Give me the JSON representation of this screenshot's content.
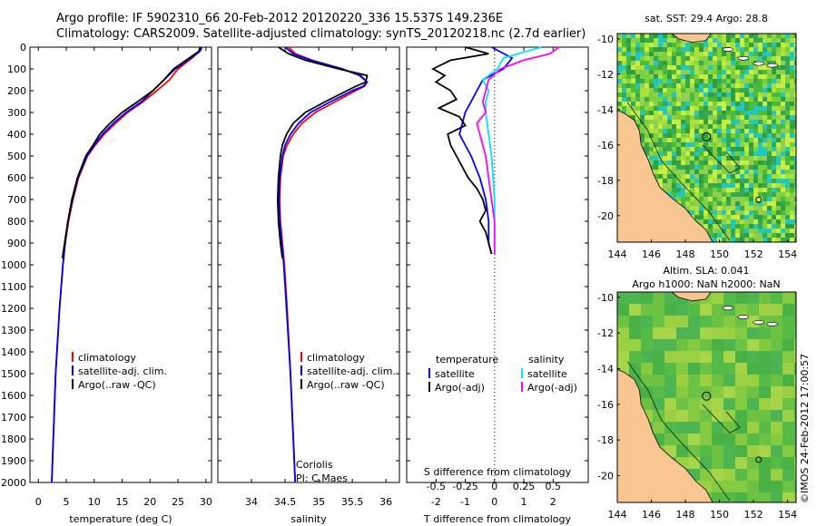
{
  "titles": {
    "line1": "Argo profile: IF 5902310_66 20-Feb-2012 20120220_336 15.537S 149.236E",
    "line2": "Climatology: CARS2009. Satellite-adjusted climatology: synTS_20120218.nc (2.7d earlier)"
  },
  "credit": "©IMOS 24-Feb-2012 17:00:57",
  "colors": {
    "climatology": "#ff0000",
    "satellite": "#0000ff",
    "argo": "#000000",
    "sal_satellite": "#00e5ff",
    "sal_argo": "#ff00ff",
    "land": "#f9c591"
  },
  "chart_data": [
    {
      "type": "line",
      "xlabel": "temperature (deg C)",
      "ylabel": "",
      "xlim": [
        -1.5,
        31
      ],
      "ylim": [
        2000,
        0
      ],
      "xticks": [
        "0",
        "5",
        "10",
        "15",
        "20",
        "25",
        "30"
      ],
      "yticks": [
        "0",
        "100",
        "200",
        "300",
        "400",
        "500",
        "600",
        "700",
        "800",
        "900",
        "1000",
        "1100",
        "1200",
        "1300",
        "1400",
        "1500",
        "1600",
        "1700",
        "1800",
        "1900",
        "2000"
      ],
      "legend": [
        "climatology",
        "satellite-adj. clim.",
        "Argo(..raw -QC)"
      ],
      "legend_position": "lower-right",
      "series": [
        {
          "name": "climatology",
          "depth": [
            0,
            20,
            50,
            100,
            150,
            200,
            250,
            300,
            350,
            400,
            450,
            500,
            600,
            700,
            800,
            900,
            1000,
            1200,
            1500,
            2000
          ],
          "values": [
            29.2,
            28.8,
            27.5,
            25.0,
            23.5,
            21.2,
            18.8,
            16.0,
            13.8,
            11.8,
            10.2,
            8.8,
            7.2,
            6.2,
            5.4,
            4.8,
            4.4,
            3.8,
            3.1,
            2.4
          ]
        },
        {
          "name": "satellite-adj. clim.",
          "depth": [
            0,
            20,
            50,
            100,
            150,
            200,
            250,
            300,
            350,
            400,
            450,
            500,
            600,
            700,
            800,
            900,
            1000,
            1200,
            1500,
            2000
          ],
          "values": [
            29.3,
            28.9,
            27.3,
            24.5,
            22.5,
            20.5,
            18.5,
            15.7,
            13.4,
            11.5,
            10.0,
            8.7,
            7.1,
            6.1,
            5.3,
            4.8,
            4.4,
            3.8,
            3.1,
            2.4
          ]
        },
        {
          "name": "Argo(..raw -QC)",
          "depth": [
            0,
            20,
            50,
            100,
            150,
            200,
            250,
            300,
            350,
            400,
            450,
            500,
            600,
            700,
            800,
            900,
            970
          ],
          "values": [
            29.0,
            28.7,
            27.0,
            24.2,
            22.5,
            20.5,
            17.8,
            15.0,
            12.8,
            11.0,
            9.8,
            8.5,
            7.0,
            6.0,
            5.3,
            4.7,
            4.3
          ]
        }
      ]
    },
    {
      "type": "line",
      "xlabel": "salinity",
      "ylabel": "",
      "xlim": [
        33.5,
        36.2
      ],
      "ylim": [
        2000,
        0
      ],
      "xticks": [
        "34",
        "34.5",
        "35",
        "35.5",
        "36"
      ],
      "legend": [
        "climatology",
        "satellite-adj. clim.",
        "Argo(..raw -QC)"
      ],
      "legend_position": "lower-right",
      "annotation": [
        "Coriolis",
        "PI: C.Maes"
      ],
      "series": [
        {
          "name": "climatology",
          "depth": [
            0,
            30,
            60,
            100,
            130,
            160,
            180,
            200,
            250,
            300,
            350,
            400,
            450,
            500,
            600,
            700,
            800,
            900,
            1000,
            1200,
            1500,
            2000
          ],
          "values": [
            34.55,
            34.65,
            34.9,
            35.35,
            35.6,
            35.72,
            35.68,
            35.55,
            35.25,
            34.95,
            34.75,
            34.62,
            34.53,
            34.47,
            34.43,
            34.42,
            34.43,
            34.46,
            34.49,
            34.53,
            34.58,
            34.65
          ]
        },
        {
          "name": "satellite-adj. clim.",
          "depth": [
            0,
            30,
            60,
            100,
            130,
            160,
            180,
            200,
            250,
            300,
            350,
            400,
            450,
            500,
            600,
            700,
            800,
            900,
            1000,
            1200,
            1500,
            2000
          ],
          "values": [
            34.5,
            34.62,
            34.88,
            35.35,
            35.62,
            35.72,
            35.66,
            35.5,
            35.18,
            34.88,
            34.7,
            34.58,
            34.5,
            34.46,
            34.42,
            34.41,
            34.42,
            34.45,
            34.48,
            34.52,
            34.58,
            34.65
          ]
        },
        {
          "name": "Argo(..raw -QC)",
          "depth": [
            0,
            30,
            60,
            100,
            130,
            160,
            180,
            200,
            250,
            300,
            350,
            400,
            450,
            500,
            600,
            700,
            800,
            900,
            970
          ],
          "values": [
            34.4,
            34.55,
            34.8,
            35.3,
            35.72,
            35.7,
            35.55,
            35.42,
            35.1,
            34.8,
            34.62,
            34.52,
            34.46,
            34.43,
            34.4,
            34.39,
            34.4,
            34.43,
            34.46
          ]
        }
      ]
    },
    {
      "type": "line",
      "xlabel": "T difference from climatology",
      "xlabel_top": "S difference from climatology",
      "ylabel": "",
      "xlim": [
        -3,
        3.2
      ],
      "ylim": [
        2000,
        0
      ],
      "xticks": [
        "-2",
        "-1",
        "0",
        "1",
        "2"
      ],
      "xticks_top": [
        "-0.5",
        "-0.25",
        "0",
        "0.25",
        "0.5"
      ],
      "legend_headers": [
        "temperature",
        "salinity"
      ],
      "legend": [
        "satellite",
        "Argo(-adj)",
        "satellite",
        "Argo(-adj)"
      ],
      "legend_position": "center",
      "series": [
        {
          "name": "satellite",
          "depth": [
            0,
            50,
            100,
            150,
            200,
            250,
            300,
            350,
            400,
            450,
            500,
            600,
            700,
            800,
            900,
            950
          ],
          "values": [
            -0.1,
            0.6,
            0.3,
            -0.4,
            -0.6,
            -0.8,
            -1.0,
            -1.1,
            -1.2,
            -1.0,
            -0.8,
            -0.5,
            -0.3,
            -0.2,
            -0.2,
            -0.1
          ]
        },
        {
          "name": "Argo(-adj)",
          "depth": [
            0,
            30,
            60,
            100,
            130,
            160,
            200,
            240,
            280,
            320,
            360,
            400,
            450,
            500,
            550,
            600,
            650,
            700,
            750,
            800,
            850,
            900,
            950
          ],
          "values": [
            -1.0,
            -0.2,
            -1.5,
            -2.1,
            -1.7,
            -2.0,
            -1.5,
            -1.3,
            -1.9,
            -1.2,
            -1.0,
            -1.6,
            -1.5,
            -1.3,
            -1.1,
            -0.9,
            -0.6,
            -0.4,
            -0.3,
            -0.5,
            -0.3,
            -0.2,
            -0.1
          ]
        },
        {
          "name": "satellite",
          "depth": [
            0,
            50,
            100,
            150,
            200,
            250,
            300,
            400,
            500,
            600,
            700,
            800,
            900,
            950
          ],
          "values": [
            1.6,
            0.3,
            0.1,
            -0.4,
            -0.2,
            -0.3,
            -0.3,
            -0.2,
            -0.1,
            -0.05,
            0.0,
            0.0,
            0.0,
            0.0
          ]
        },
        {
          "name": "Argo(-adj)",
          "depth": [
            0,
            30,
            60,
            100,
            150,
            200,
            250,
            300,
            350,
            400,
            450,
            500,
            600,
            700,
            800,
            900,
            950
          ],
          "values": [
            2.2,
            1.9,
            1.0,
            0.2,
            -0.2,
            -0.3,
            -0.4,
            -0.3,
            -0.6,
            -0.5,
            -0.4,
            -0.3,
            -0.2,
            -0.1,
            0.0,
            0.0,
            0.0
          ]
        }
      ]
    },
    {
      "type": "heatmap",
      "title": "sat. SST: 29.4  Argo: 28.8",
      "xlim": [
        144,
        154.5
      ],
      "ylim": [
        -21.5,
        -9.7
      ],
      "xticks": [
        "144",
        "146",
        "148",
        "150",
        "152",
        "154"
      ],
      "yticks": [
        "-10",
        "-12",
        "-14",
        "-16",
        "-18",
        "-20"
      ]
    },
    {
      "type": "heatmap",
      "title": "Altim. SLA: 0.041",
      "subtitle": "Argo h1000: NaN h2000: NaN",
      "xlim": [
        144,
        154.5
      ],
      "ylim": [
        -21.5,
        -9.7
      ],
      "xticks": [
        "144",
        "146",
        "148",
        "150",
        "152",
        "154"
      ],
      "yticks": [
        "-10",
        "-12",
        "-14",
        "-16",
        "-18",
        "-20"
      ]
    }
  ]
}
